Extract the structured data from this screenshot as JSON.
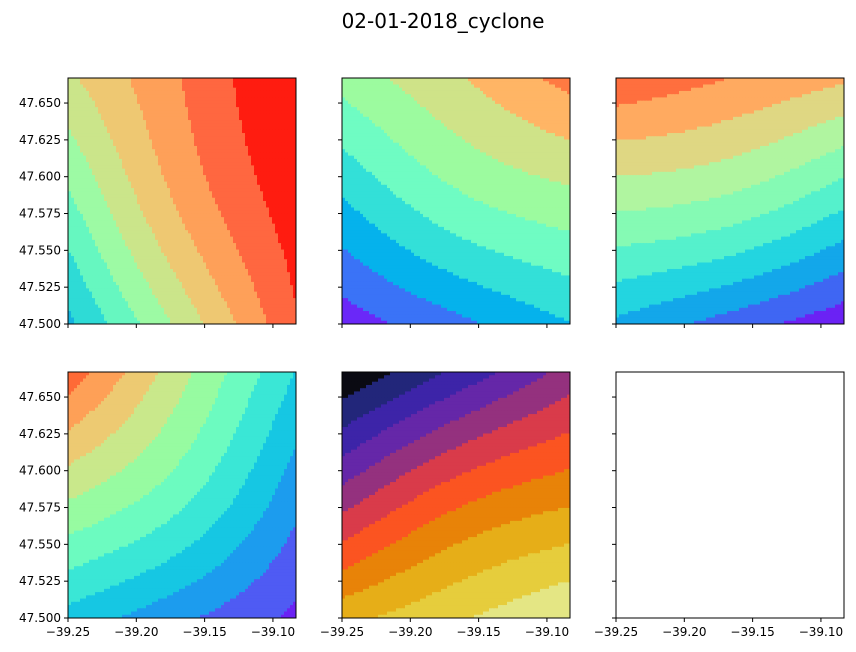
{
  "title": "02-01-2018_cyclone",
  "chart_data": {
    "type": "contour",
    "title": "02-01-2018_cyclone",
    "layout": "2x3 grid of filled-contour subplots; shared x and y axes",
    "x_range": [
      -39.25,
      -39.083
    ],
    "y_range": [
      47.5,
      47.667
    ],
    "x_ticks": [
      "−39.25",
      "−39.20",
      "−39.15",
      "−39.10"
    ],
    "y_ticks": [
      "47.500",
      "47.525",
      "47.550",
      "47.575",
      "47.600",
      "47.625",
      "47.650"
    ],
    "xlabel": "",
    "ylabel": "",
    "panels": [
      {
        "id": "r1c1",
        "colormap": "rainbow",
        "gradient": "increasing toward upper-right",
        "corner_values": {
          "bottom_left": 0.25,
          "bottom_right": 0.9,
          "top_left": 0.62,
          "top_right": 1.02
        },
        "band_colors": [
          "#5a4df2",
          "#2f8ff5",
          "#14b3e0",
          "#2edbd6",
          "#66f7c0",
          "#9dfaa4",
          "#cbe58a",
          "#eec872",
          "#fea059",
          "#ff6740",
          "#ff1c10"
        ]
      },
      {
        "id": "r1c2",
        "colormap": "rainbow",
        "gradient": "increasing toward upper-right",
        "corner_values": {
          "bottom_left": 0.05,
          "bottom_right": 0.33,
          "top_left": 0.6,
          "top_right": 0.93
        },
        "band_colors": [
          "#6a28f8",
          "#3a73f7",
          "#05b2ec",
          "#33e0d8",
          "#6ffcc3",
          "#9cfb9f",
          "#cfe388",
          "#ffb565",
          "#ff7a42"
        ]
      },
      {
        "id": "r1c3",
        "colormap": "rainbow",
        "gradient": "increasing toward upper-left",
        "corner_values": {
          "bottom_left": 0.28,
          "bottom_right": 0.03,
          "top_left": 0.98,
          "top_right": 0.82
        },
        "band_colors": [
          "#6b22f4",
          "#3f66f3",
          "#13a7ea",
          "#23d5e0",
          "#55f1cc",
          "#85fab4",
          "#b0f5a0",
          "#dfd783",
          "#ffaa60",
          "#ff6f3e"
        ]
      },
      {
        "id": "r2c1",
        "colormap": "rainbow",
        "gradient": "increasing toward upper-left",
        "corner_values": {
          "bottom_left": 0.33,
          "bottom_right": 0.07,
          "top_left": 0.97,
          "top_right": 0.36
        },
        "band_colors": [
          "#6b22f4",
          "#4f5bf3",
          "#1c9cee",
          "#16c7e3",
          "#3ae7d6",
          "#6cfbc0",
          "#97fba1",
          "#c9e88b",
          "#edca72",
          "#fea057",
          "#ff6a36"
        ]
      },
      {
        "id": "r2c2",
        "colormap": "inferno",
        "gradient": "increasing toward lower-right",
        "corner_values": {
          "bottom_left": 0.79,
          "bottom_right": 1.0,
          "top_left": 0.0,
          "top_right": 0.4
        },
        "band_colors": [
          "#0a0a12",
          "#22267a",
          "#3d24a8",
          "#6527a8",
          "#94317e",
          "#d93b4a",
          "#fb5421",
          "#e88308",
          "#e6ae18",
          "#e6cd3c",
          "#e4e684"
        ]
      },
      {
        "id": "r2c3",
        "colormap": "none",
        "gradient": "empty axes",
        "corner_values": {},
        "band_colors": []
      }
    ]
  }
}
